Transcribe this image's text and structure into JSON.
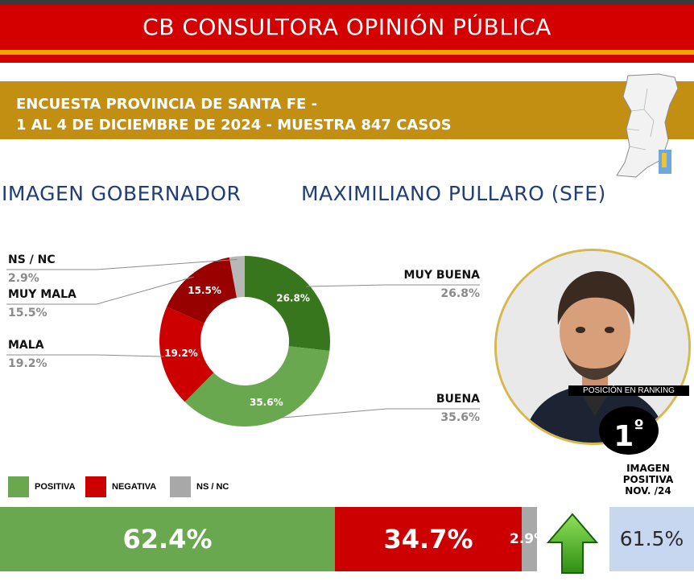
{
  "header": {
    "title": "CB CONSULTORA OPINIÓN PÚBLICA"
  },
  "survey": {
    "line1": "ENCUESTA PROVINCIA DE SANTA FE -",
    "line2": "1 AL 4 DE DICIEMBRE DE 2024 - MUESTRA 847 CASOS"
  },
  "headings": {
    "left": "IMAGEN GOBERNADOR",
    "right": "MAXIMILIANO PULLARO (SFE)"
  },
  "chart_data": {
    "type": "pie",
    "variant": "donut",
    "slices": [
      {
        "label": "MUY BUENA",
        "value": 26.8,
        "display": "26.8%",
        "color": "#38761d"
      },
      {
        "label": "BUENA",
        "value": 35.6,
        "display": "35.6%",
        "color": "#6aa84f"
      },
      {
        "label": "MALA",
        "value": 19.2,
        "display": "19.2%",
        "color": "#cc0000"
      },
      {
        "label": "MUY MALA",
        "value": 15.5,
        "display": "15.5%",
        "color": "#990000"
      },
      {
        "label": "NS / NC",
        "value": 2.9,
        "display": "2.9%",
        "color": "#b7b7b7"
      }
    ],
    "summary": [
      {
        "label": "POSITIVA",
        "value": 62.4,
        "display": "62.4%",
        "color": "#6aa84f"
      },
      {
        "label": "NEGATIVA",
        "value": 34.7,
        "display": "34.7%",
        "color": "#cc0000"
      },
      {
        "label": "NS / NC",
        "value": 2.9,
        "display": "2.9%",
        "color": "#a8a8a8"
      }
    ]
  },
  "ranking": {
    "label": "POSICIÓN EN RANKING",
    "position": "1",
    "ordinal": "º",
    "note_line1": "IMAGEN",
    "note_line2": "POSITIVA",
    "note_line3": "NOV. /24",
    "previous_positive": "61.5%"
  },
  "icons": {
    "trend": "up-arrow-icon",
    "map": "santa-fe-map-icon",
    "portrait": "governor-portrait"
  }
}
